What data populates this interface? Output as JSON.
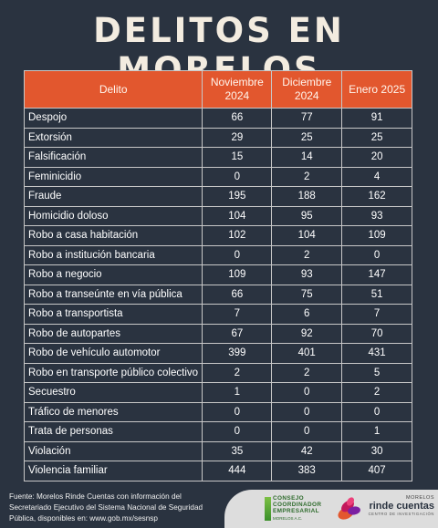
{
  "title": "DELITOS EN MORELOS",
  "table": {
    "headers": [
      "Delito",
      "Noviembre 2024",
      "Diciembre 2024",
      "Enero 2025"
    ],
    "rows": [
      [
        "Despojo",
        "66",
        "77",
        "91"
      ],
      [
        "Extorsión",
        "29",
        "25",
        "25"
      ],
      [
        "Falsificación",
        "15",
        "14",
        "20"
      ],
      [
        "Feminicidio",
        "0",
        "2",
        "4"
      ],
      [
        "Fraude",
        "195",
        "188",
        "162"
      ],
      [
        "Homicidio doloso",
        "104",
        "95",
        "93"
      ],
      [
        "Robo a casa habitación",
        "102",
        "104",
        "109"
      ],
      [
        "Robo a institución bancaria",
        "0",
        "2",
        "0"
      ],
      [
        "Robo a negocio",
        "109",
        "93",
        "147"
      ],
      [
        "Robo a transeúnte en vía pública",
        "66",
        "75",
        "51"
      ],
      [
        "Robo a transportista",
        "7",
        "6",
        "7"
      ],
      [
        "Robo de autopartes",
        "67",
        "92",
        "70"
      ],
      [
        "Robo de vehículo automotor",
        "399",
        "401",
        "431"
      ],
      [
        "Robo en transporte público  colectivo",
        "2",
        "2",
        "5"
      ],
      [
        "Secuestro",
        "1",
        "0",
        "2"
      ],
      [
        "Tráfico de menores",
        "0",
        "0",
        "0"
      ],
      [
        "Trata de personas",
        "0",
        "0",
        "1"
      ],
      [
        "Violación",
        "35",
        "42",
        "30"
      ],
      [
        "Violencia familiar",
        "444",
        "383",
        "407"
      ]
    ]
  },
  "footer": {
    "source_lines": [
      "Fuente: Morelos Rinde Cuentas con información del",
      "Secretariado Ejecutivo del Sistema Nacional de Seguridad",
      "Pública, disponibles en: www.gob.mx/sesnsp"
    ],
    "logo_cce": {
      "lines": [
        "CONSEJO",
        "COORDINADOR",
        "EMPRESARIAL",
        "MORELOS A.C."
      ]
    },
    "logo_mrc": {
      "top": "MORELOS",
      "main": "rinde cuentas",
      "sub": "CENTRO DE INVESTIGACIÓN"
    }
  },
  "colors": {
    "background": "#2a3340",
    "header_accent": "#e2572e",
    "title_text": "#f3ece0",
    "grid": "#c8c8c8",
    "logo_panel": "#dddddd"
  }
}
